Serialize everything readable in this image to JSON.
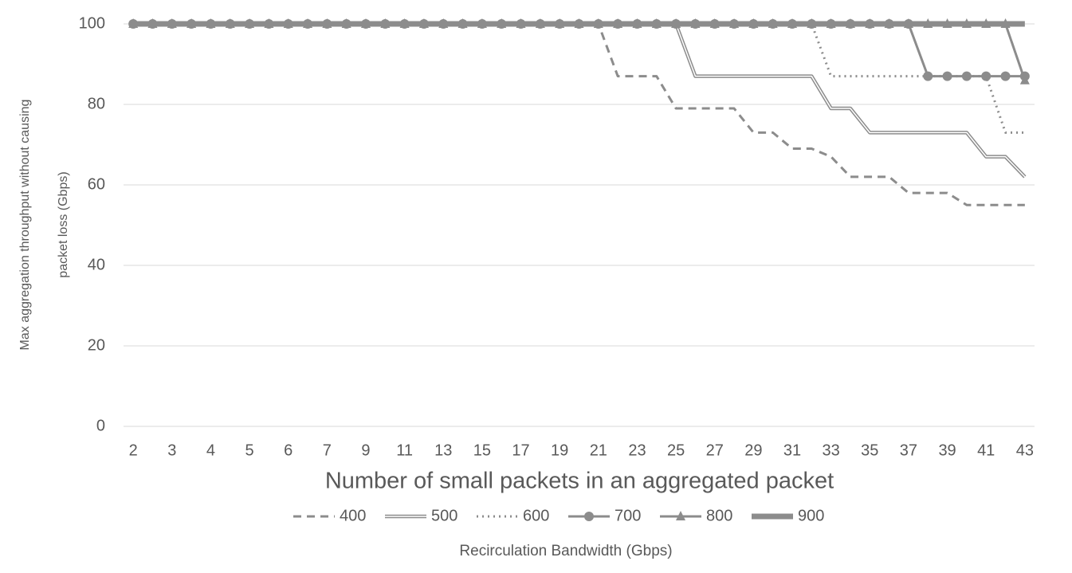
{
  "chart_data": {
    "type": "line",
    "ylabel": [
      "Max aggregation throughput without causing",
      "packet loss (Gbps)"
    ],
    "xlabel": "Number of small packets in an aggregated packet",
    "legend_title": "Recirculation Bandwidth (Gbps)",
    "categories": [
      "2",
      null,
      "3",
      null,
      "4",
      null,
      "5",
      null,
      "6",
      null,
      "7",
      null,
      "9",
      null,
      "11",
      null,
      "13",
      null,
      "15",
      null,
      "17",
      null,
      "19",
      null,
      "21",
      null,
      "23",
      null,
      "25",
      null,
      "27",
      null,
      "29",
      null,
      "31",
      null,
      "33",
      null,
      "35",
      null,
      "37",
      null,
      "39",
      null,
      "41",
      null,
      "43"
    ],
    "ylim": [
      0,
      100
    ],
    "yticks": [
      0,
      20,
      40,
      60,
      80,
      100
    ],
    "grid": true,
    "series": [
      {
        "name": "400",
        "color": "#8c8c8c",
        "style": "dashed",
        "marker": "none",
        "values": [
          100,
          100,
          100,
          100,
          100,
          100,
          100,
          100,
          100,
          100,
          100,
          100,
          100,
          100,
          100,
          100,
          100,
          100,
          100,
          100,
          100,
          100,
          100,
          100,
          100,
          87,
          87,
          87,
          79,
          79,
          79,
          79,
          73,
          73,
          69,
          69,
          67,
          62,
          62,
          62,
          58,
          58,
          58,
          55,
          55,
          55,
          55
        ]
      },
      {
        "name": "500",
        "color": "#8c8c8c",
        "style": "double",
        "marker": "none",
        "values": [
          100,
          100,
          100,
          100,
          100,
          100,
          100,
          100,
          100,
          100,
          100,
          100,
          100,
          100,
          100,
          100,
          100,
          100,
          100,
          100,
          100,
          100,
          100,
          100,
          100,
          100,
          100,
          100,
          100,
          87,
          87,
          87,
          87,
          87,
          87,
          87,
          79,
          79,
          73,
          73,
          73,
          73,
          73,
          73,
          67,
          67,
          62
        ]
      },
      {
        "name": "600",
        "color": "#8c8c8c",
        "style": "dotted",
        "marker": "none",
        "values": [
          100,
          100,
          100,
          100,
          100,
          100,
          100,
          100,
          100,
          100,
          100,
          100,
          100,
          100,
          100,
          100,
          100,
          100,
          100,
          100,
          100,
          100,
          100,
          100,
          100,
          100,
          100,
          100,
          100,
          100,
          100,
          100,
          100,
          100,
          100,
          100,
          87,
          87,
          87,
          87,
          87,
          87,
          87,
          87,
          87,
          73,
          73
        ]
      },
      {
        "name": "700",
        "color": "#8c8c8c",
        "style": "solid",
        "marker": "circle",
        "values": [
          100,
          100,
          100,
          100,
          100,
          100,
          100,
          100,
          100,
          100,
          100,
          100,
          100,
          100,
          100,
          100,
          100,
          100,
          100,
          100,
          100,
          100,
          100,
          100,
          100,
          100,
          100,
          100,
          100,
          100,
          100,
          100,
          100,
          100,
          100,
          100,
          100,
          100,
          100,
          100,
          100,
          87,
          87,
          87,
          87,
          87,
          87
        ]
      },
      {
        "name": "800",
        "color": "#8c8c8c",
        "style": "solid",
        "marker": "triangle",
        "values": [
          100,
          100,
          100,
          100,
          100,
          100,
          100,
          100,
          100,
          100,
          100,
          100,
          100,
          100,
          100,
          100,
          100,
          100,
          100,
          100,
          100,
          100,
          100,
          100,
          100,
          100,
          100,
          100,
          100,
          100,
          100,
          100,
          100,
          100,
          100,
          100,
          100,
          100,
          100,
          100,
          100,
          100,
          100,
          100,
          100,
          100,
          86
        ]
      },
      {
        "name": "900",
        "color": "#8c8c8c",
        "style": "thick",
        "marker": "none",
        "values": [
          100,
          100,
          100,
          100,
          100,
          100,
          100,
          100,
          100,
          100,
          100,
          100,
          100,
          100,
          100,
          100,
          100,
          100,
          100,
          100,
          100,
          100,
          100,
          100,
          100,
          100,
          100,
          100,
          100,
          100,
          100,
          100,
          100,
          100,
          100,
          100,
          100,
          100,
          100,
          100,
          100,
          100,
          100,
          100,
          100,
          100,
          100
        ]
      }
    ]
  }
}
